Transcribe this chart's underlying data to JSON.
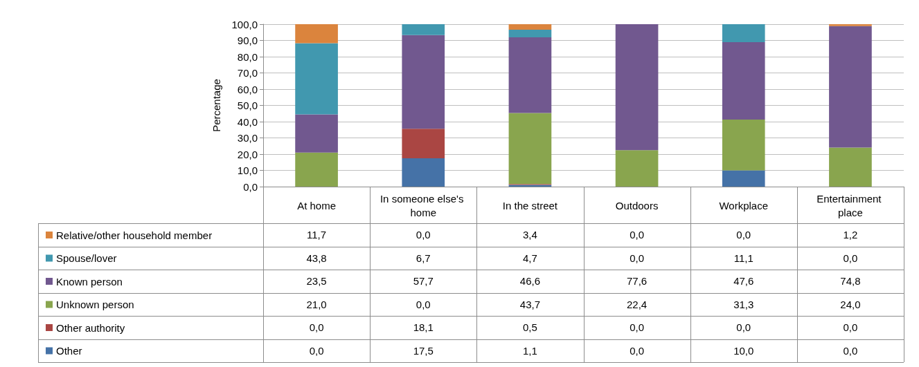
{
  "chart_data": {
    "type": "bar",
    "stacked": true,
    "ylabel": "Percentage",
    "categories": [
      "At home",
      "In someone else's home",
      "In the street",
      "Outdoors",
      "Workplace",
      "Entertainment place"
    ],
    "series": [
      {
        "name": "Other",
        "color": "#4572a7",
        "values": [
          0.0,
          17.5,
          1.1,
          0.0,
          10.0,
          0.0
        ],
        "value_labels": [
          "0,0",
          "17,5",
          "1,1",
          "0,0",
          "10,0",
          "0,0"
        ]
      },
      {
        "name": "Other authority",
        "color": "#aa4643",
        "values": [
          0.0,
          18.1,
          0.5,
          0.0,
          0.0,
          0.0
        ],
        "value_labels": [
          "0,0",
          "18,1",
          "0,5",
          "0,0",
          "0,0",
          "0,0"
        ]
      },
      {
        "name": "Unknown person",
        "color": "#89a54e",
        "values": [
          21.0,
          0.0,
          43.7,
          22.4,
          31.3,
          24.0
        ],
        "value_labels": [
          "21,0",
          "0,0",
          "43,7",
          "22,4",
          "31,3",
          "24,0"
        ]
      },
      {
        "name": "Known person",
        "color": "#71588f",
        "values": [
          23.5,
          57.7,
          46.6,
          77.6,
          47.6,
          74.8
        ],
        "value_labels": [
          "23,5",
          "57,7",
          "46,6",
          "77,6",
          "47,6",
          "74,8"
        ]
      },
      {
        "name": "Spouse/lover",
        "color": "#4198af",
        "values": [
          43.8,
          6.7,
          4.7,
          0.0,
          11.1,
          0.0
        ],
        "value_labels": [
          "43,8",
          "6,7",
          "4,7",
          "0,0",
          "11,1",
          "0,0"
        ]
      },
      {
        "name": "Relative/other household member",
        "color": "#db843d",
        "values": [
          11.7,
          0.0,
          3.4,
          0.0,
          0.0,
          1.2
        ],
        "value_labels": [
          "11,7",
          "0,0",
          "3,4",
          "0,0",
          "0,0",
          "1,2"
        ]
      }
    ],
    "ylim": [
      0,
      100
    ],
    "yticks": [
      {
        "value": 0,
        "label": "0,0"
      },
      {
        "value": 10,
        "label": "10,0"
      },
      {
        "value": 20,
        "label": "20,0"
      },
      {
        "value": 30,
        "label": "30,0"
      },
      {
        "value": 40,
        "label": "40,0"
      },
      {
        "value": 50,
        "label": "50,0"
      },
      {
        "value": 60,
        "label": "60,0"
      },
      {
        "value": 70,
        "label": "70,0"
      },
      {
        "value": 80,
        "label": "80,0"
      },
      {
        "value": 90,
        "label": "90,0"
      },
      {
        "value": 100,
        "label": "100,0"
      }
    ],
    "grid": "y",
    "legend": "bottom left"
  }
}
